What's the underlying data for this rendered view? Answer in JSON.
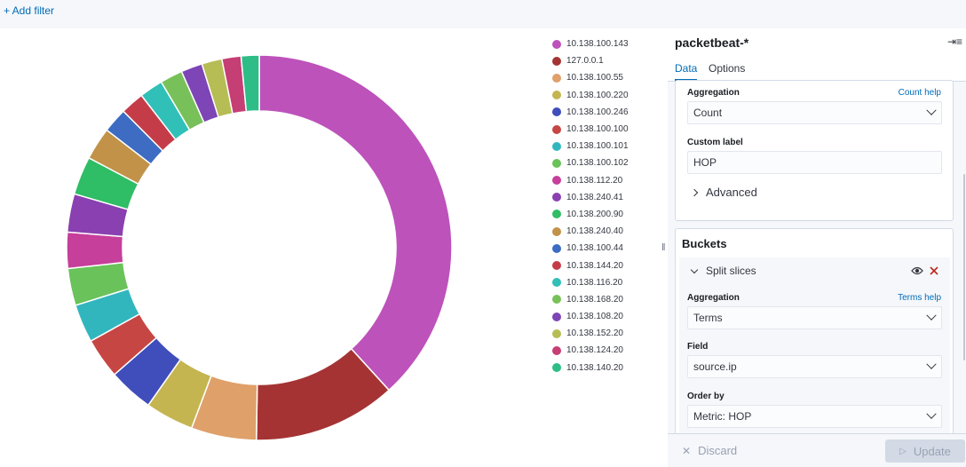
{
  "filter_bar": {
    "add_filter": "+ Add filter"
  },
  "sidebar": {
    "index_title": "packetbeat-*",
    "tabs": [
      "Data",
      "Options"
    ],
    "metric": {
      "aggregation_label": "Aggregation",
      "aggregation_help": "Count help",
      "aggregation_value": "Count",
      "custom_label_label": "Custom label",
      "custom_label_value": "HOP",
      "advanced": "Advanced"
    },
    "buckets": {
      "title": "Buckets",
      "split": "Split slices",
      "aggregation_label": "Aggregation",
      "aggregation_help": "Terms help",
      "aggregation_value": "Terms",
      "field_label": "Field",
      "field_value": "source.ip",
      "order_by_label": "Order by",
      "order_by_value": "Metric: HOP"
    },
    "footer": {
      "discard": "Discard",
      "update": "Update"
    }
  },
  "chart_data": {
    "type": "pie",
    "donut": true,
    "categories": [
      "10.138.100.143",
      "127.0.0.1",
      "10.138.100.55",
      "10.138.100.220",
      "10.138.100.246",
      "10.138.100.100",
      "10.138.100.101",
      "10.138.100.102",
      "10.138.112.20",
      "10.138.240.41",
      "10.138.200.90",
      "10.138.240.40",
      "10.138.100.44",
      "10.138.144.20",
      "10.138.116.20",
      "10.138.168.20",
      "10.138.108.20",
      "10.138.152.20",
      "10.138.124.20",
      "10.138.140.20"
    ],
    "values": [
      40.5,
      12.7,
      5.8,
      4.3,
      4.0,
      3.6,
      3.4,
      3.3,
      3.2,
      3.4,
      3.4,
      2.9,
      2.2,
      2.1,
      2.1,
      2.0,
      1.9,
      1.8,
      1.7,
      1.6
    ],
    "colors": [
      "#bd52bb",
      "#a53333",
      "#dfa06a",
      "#c4b551",
      "#3f4ebb",
      "#c64643",
      "#32b6be",
      "#6ac25a",
      "#c63f9a",
      "#8a40b0",
      "#2fbd65",
      "#c19248",
      "#3d6cc2",
      "#c53c49",
      "#30c0b8",
      "#78c15a",
      "#7d45b6",
      "#b6bd55",
      "#c53e74",
      "#2ebd86"
    ],
    "legend_position": "right"
  }
}
